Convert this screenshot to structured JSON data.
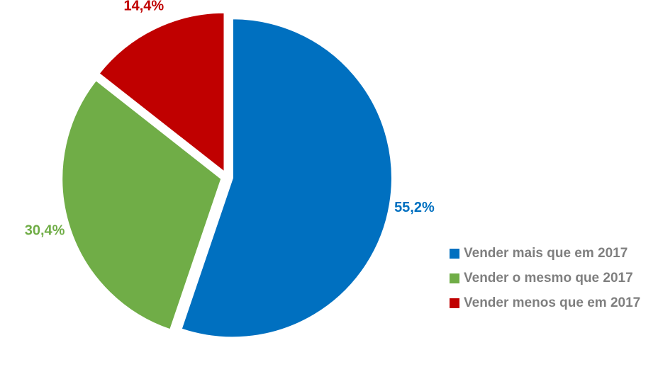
{
  "chart_data": {
    "type": "pie",
    "categories": [
      "Vender mais que em 2017",
      "Vender o mesmo que 2017",
      "Vender menos que em 2017"
    ],
    "values": [
      55.2,
      30.4,
      14.4
    ],
    "value_labels": [
      "55,2%",
      "30,4%",
      "14,4%"
    ],
    "colors": [
      "#0070c0",
      "#70ad47",
      "#c00000"
    ],
    "legend": "right"
  }
}
